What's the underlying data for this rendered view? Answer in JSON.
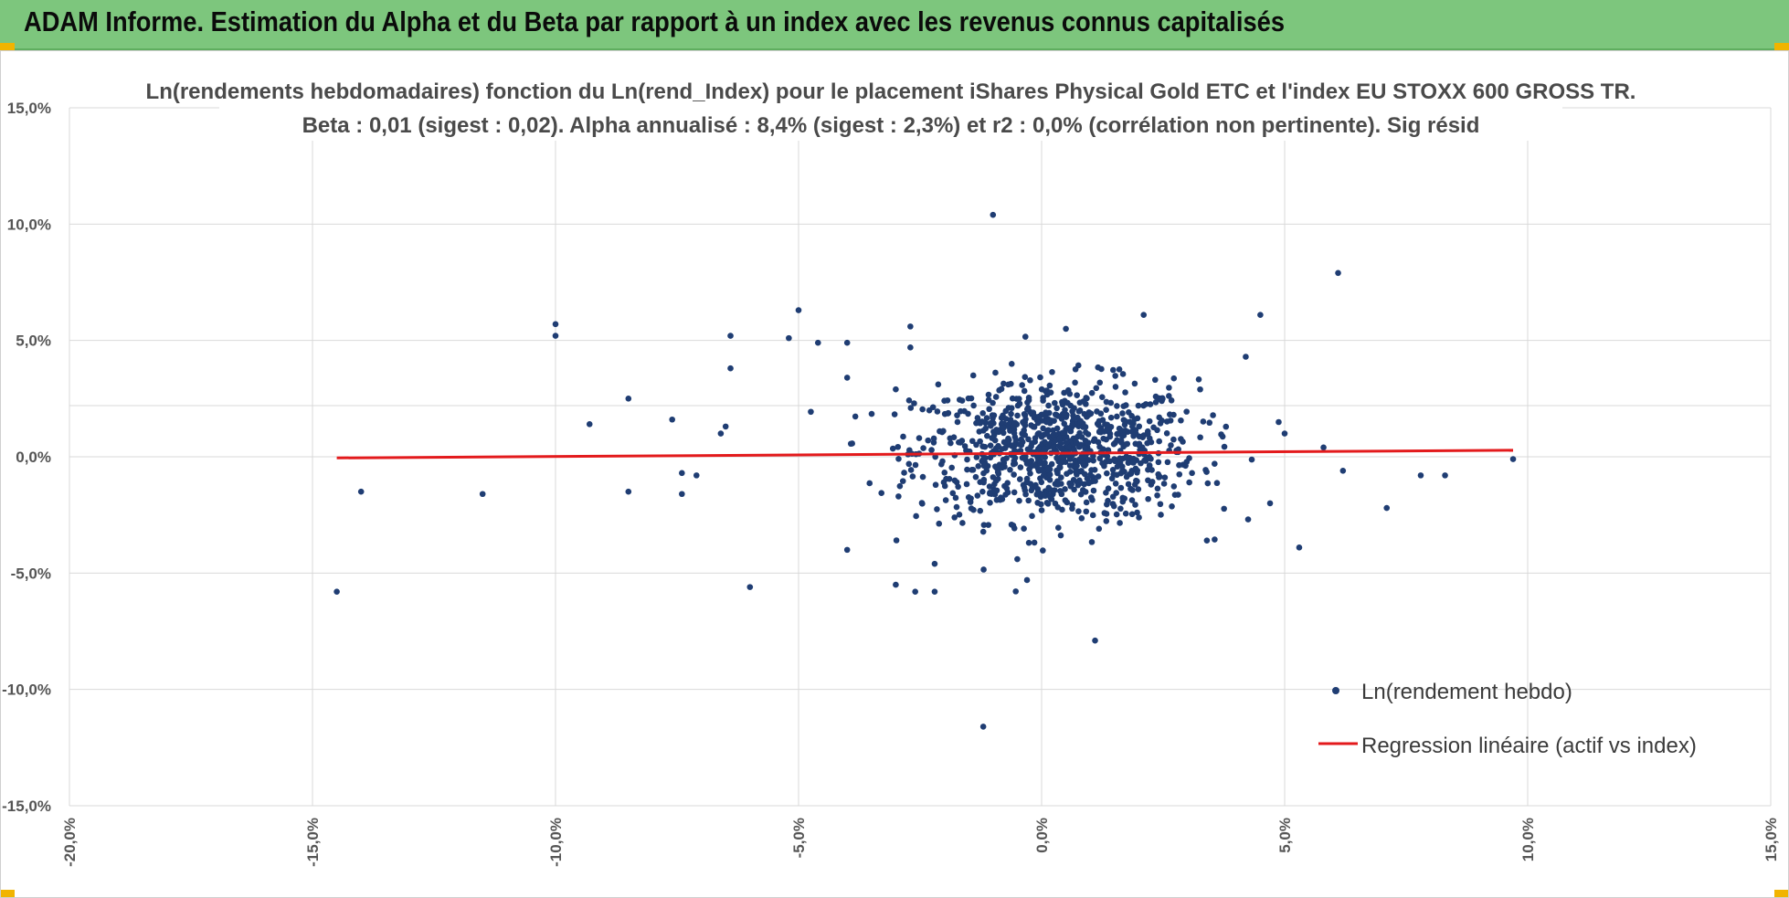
{
  "header": {
    "title": "ADAM Informe. Estimation du Alpha et du Beta par rapport à un index avec les revenus connus capitalisés"
  },
  "colors": {
    "banner": "#7dc67d",
    "points": "#1f3d73",
    "regression": "#e31a1c",
    "grid": "#d9d9d9",
    "corner": "#f1b400"
  },
  "chart_data": {
    "type": "scatter",
    "title_line1": "Ln(rendements hebdomadaires) fonction du Ln(rend_Index) pour le placement iShares Physical Gold ETC et l'index EU STOXX 600 GROSS TR.",
    "title_line2": "Beta : 0,01 (sigest : 0,02). Alpha annualisé : 8,4% (sigest : 2,3%) et r2 : 0,0% (corrélation non pertinente). Sig résid",
    "xlim": [
      -20,
      15
    ],
    "ylim": [
      -15,
      15
    ],
    "x_ticks": [
      "-20,0%",
      "-15,0%",
      "-10,0%",
      "-5,0%",
      "0,0%",
      "5,0%",
      "10,0%",
      "15,0%"
    ],
    "y_ticks": [
      "15,0%",
      "10,0%",
      "5,0%",
      "0,0%",
      "-5,0%",
      "-10,0%",
      "-15,0%"
    ],
    "grid": true,
    "legend_position": "bottom-right",
    "series": [
      {
        "name": "Ln(rendement hebdo)",
        "kind": "scatter",
        "outliers": [
          [
            -14.5,
            -5.8
          ],
          [
            -14.0,
            -1.5
          ],
          [
            -11.5,
            -1.6
          ],
          [
            -10.0,
            5.7
          ],
          [
            -10.0,
            5.2
          ],
          [
            -9.3,
            1.4
          ],
          [
            -8.5,
            2.5
          ],
          [
            -8.5,
            -1.5
          ],
          [
            -7.6,
            1.6
          ],
          [
            -7.4,
            -0.7
          ],
          [
            -7.4,
            -1.6
          ],
          [
            -7.1,
            -0.8
          ],
          [
            -6.6,
            1.0
          ],
          [
            -6.5,
            1.3
          ],
          [
            -6.4,
            5.2
          ],
          [
            -6.4,
            3.8
          ],
          [
            -6.0,
            -5.6
          ],
          [
            -5.2,
            5.1
          ],
          [
            -5.0,
            6.3
          ],
          [
            -4.6,
            4.9
          ],
          [
            -4.0,
            4.9
          ],
          [
            -4.0,
            3.4
          ],
          [
            -3.0,
            2.9
          ],
          [
            -2.7,
            5.6
          ],
          [
            -2.7,
            4.7
          ],
          [
            -3.0,
            -5.5
          ],
          [
            -2.6,
            -5.8
          ],
          [
            -2.2,
            -5.8
          ],
          [
            -2.2,
            -4.6
          ],
          [
            -0.3,
            -5.3
          ],
          [
            -1.0,
            10.4
          ],
          [
            -1.2,
            -11.6
          ],
          [
            1.1,
            -7.9
          ],
          [
            2.1,
            6.1
          ],
          [
            4.5,
            6.1
          ],
          [
            6.1,
            7.9
          ],
          [
            5.3,
            -3.9
          ],
          [
            7.1,
            -2.2
          ],
          [
            7.8,
            -0.8
          ],
          [
            8.3,
            -0.8
          ],
          [
            9.7,
            -0.1
          ],
          [
            6.2,
            -0.6
          ],
          [
            5.8,
            0.4
          ],
          [
            4.2,
            4.3
          ],
          [
            3.4,
            -3.6
          ],
          [
            -0.5,
            -4.4
          ],
          [
            0.5,
            5.5
          ],
          [
            -4.0,
            -4.0
          ],
          [
            5.0,
            1.0
          ],
          [
            4.7,
            -2.0
          ]
        ],
        "cloud": {
          "count": 950,
          "x_mean": 0.3,
          "x_sd": 1.45,
          "y_mean": 0.25,
          "y_sd": 1.5,
          "slope": 0.01
        }
      },
      {
        "name": "Regression linéaire (actif vs index)",
        "kind": "line",
        "x": [
          -14.5,
          9.7
        ],
        "y": [
          -0.05,
          0.28
        ]
      }
    ]
  }
}
